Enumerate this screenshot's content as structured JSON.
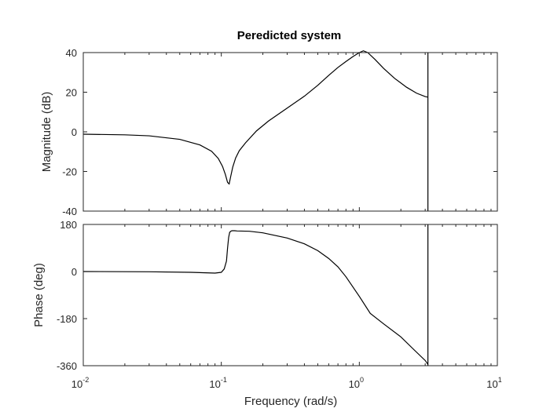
{
  "chart_data": {
    "type": "line",
    "title": "Peredicted system",
    "xlabel": "Frequency  (rad/s)",
    "xscale": "log",
    "xlim": [
      0.01,
      10
    ],
    "xticks": [
      {
        "base": "10",
        "exp": "-2",
        "value": 0.01
      },
      {
        "base": "10",
        "exp": "-1",
        "value": 0.1
      },
      {
        "base": "10",
        "exp": "0",
        "value": 1
      },
      {
        "base": "10",
        "exp": "1",
        "value": 10
      }
    ],
    "nyquist_line": 3.14,
    "grid": false,
    "subplots": [
      {
        "name": "magnitude",
        "ylabel": "Magnitude (dB)",
        "ylim": [
          -40,
          40
        ],
        "yticks": [
          -40,
          -20,
          0,
          20,
          40
        ],
        "x": [
          0.01,
          0.02,
          0.03,
          0.05,
          0.07,
          0.085,
          0.095,
          0.102,
          0.107,
          0.111,
          0.114,
          0.117,
          0.121,
          0.127,
          0.135,
          0.15,
          0.18,
          0.22,
          0.3,
          0.4,
          0.5,
          0.6,
          0.7,
          0.8,
          0.9,
          1.0,
          1.07,
          1.15,
          1.3,
          1.5,
          1.8,
          2.2,
          2.6,
          3.0,
          3.14
        ],
        "y": [
          -1.2,
          -1.5,
          -2.0,
          -3.8,
          -6.6,
          -9.8,
          -13.4,
          -17.4,
          -21.5,
          -25.5,
          -26.3,
          -22.5,
          -17.8,
          -13.2,
          -9.5,
          -5.5,
          0.5,
          5.5,
          12.0,
          18.0,
          23.5,
          28.5,
          32.5,
          35.5,
          38.0,
          40.0,
          40.9,
          40.0,
          36.5,
          32.0,
          27.0,
          22.5,
          19.5,
          17.8,
          17.5
        ]
      },
      {
        "name": "phase",
        "ylabel": "Phase (deg)",
        "ylim": [
          -360,
          180
        ],
        "yticks": [
          -360,
          -180,
          0,
          180
        ],
        "x": [
          0.01,
          0.03,
          0.06,
          0.09,
          0.1,
          0.105,
          0.109,
          0.111,
          0.113,
          0.115,
          0.118,
          0.12,
          0.125,
          0.13,
          0.16,
          0.2,
          0.3,
          0.4,
          0.5,
          0.6,
          0.7,
          0.8,
          1.0,
          1.2,
          1.5,
          2.0,
          2.5,
          3.0,
          3.14
        ],
        "y": [
          0,
          -1,
          -3,
          -6,
          -3,
          10,
          40,
          90,
          130,
          150,
          155,
          156,
          156,
          155,
          154,
          148,
          128,
          106,
          80,
          50,
          18,
          -20,
          -95,
          -160,
          -200,
          -250,
          -300,
          -340,
          -355
        ]
      }
    ]
  }
}
